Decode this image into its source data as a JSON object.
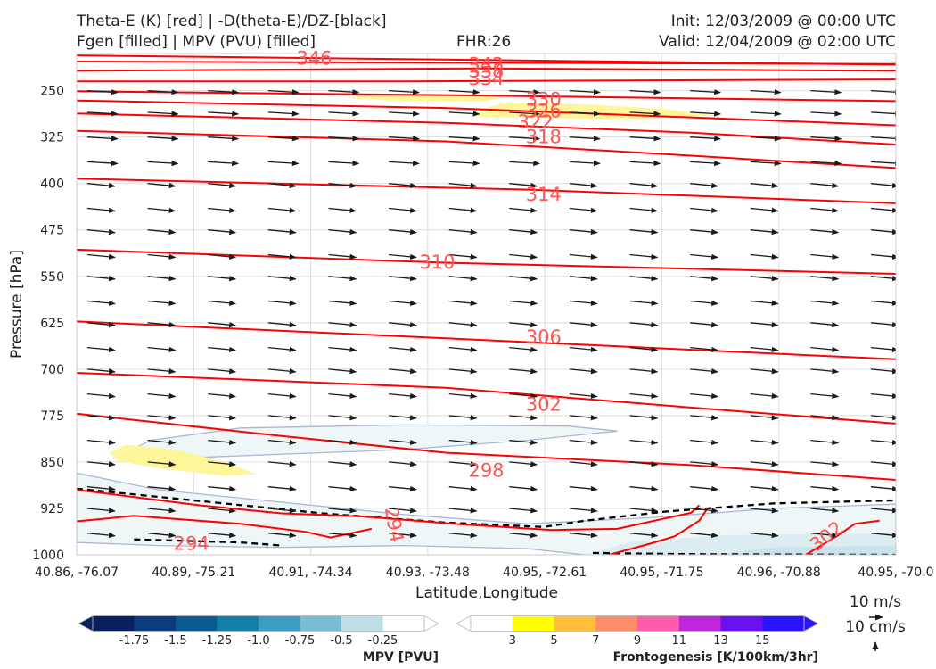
{
  "header": {
    "title_left_1": "Theta-E (K) [red] | -D(theta-E)/DZ-[black]",
    "title_left_2": "Fgen [filled] | MPV (PVU) [filled]",
    "fhr": "FHR:26",
    "init": "Init: 12/03/2009 @ 00:00 UTC",
    "valid": "Valid: 12/04/2009 @ 02:00 UTC"
  },
  "colors": {
    "theta_e": "#ff0000",
    "theta_e_label": "#ff5555",
    "wind": "#1a1a1a",
    "fgen_low": "#fff59a",
    "mpv_fill": "#eef6f8",
    "mpv_edge": "#a9b6d6"
  },
  "legend": {
    "wind_ref": "10 m/s",
    "vert_ref": "10 cm/s"
  },
  "colorbars": {
    "mpv": {
      "label": "MPV [PVU]",
      "ticks": [
        "-1.75",
        "-1.5",
        "-1.25",
        "-1.0",
        "-0.75",
        "-0.5",
        "-0.25"
      ],
      "colors": [
        "#08205c",
        "#0b3c7d",
        "#0c5a92",
        "#1380aa",
        "#3c9dc0",
        "#79bcd3",
        "#bedfe8",
        "#ffffff"
      ]
    },
    "fgen": {
      "label": "Frontogenesis [K/100km/3hr]",
      "ticks": [
        "3",
        "5",
        "7",
        "9",
        "11",
        "13",
        "15"
      ],
      "colors": [
        "#ffffff",
        "#ffff00",
        "#ffbf3b",
        "#ff8c6a",
        "#ff5cae",
        "#c026d9",
        "#6a11ef",
        "#2a14ff"
      ]
    }
  },
  "chart_data": {
    "type": "cross-section",
    "xlabel": "Latitude,Longitude",
    "ylabel": "Pressure [hPa]",
    "x_ticks": [
      "40.86, -76.07",
      "40.89, -75.21",
      "40.91, -74.34",
      "40.93, -73.48",
      "40.95, -72.61",
      "40.95, -71.75",
      "40.96, -70.88",
      "40.95, -70.0"
    ],
    "y_ticks": [
      250,
      325,
      400,
      475,
      550,
      625,
      700,
      775,
      850,
      925,
      1000
    ],
    "ylim": [
      1000,
      190
    ],
    "y_scale": "linear",
    "theta_e_labels": [
      "346",
      "342",
      "338",
      "334",
      "330",
      "326",
      "322",
      "318",
      "314",
      "310",
      "306",
      "302",
      "298",
      "294",
      "294",
      "302"
    ],
    "contour_interval_K": 4,
    "grid": true,
    "wind_vectors": true
  }
}
